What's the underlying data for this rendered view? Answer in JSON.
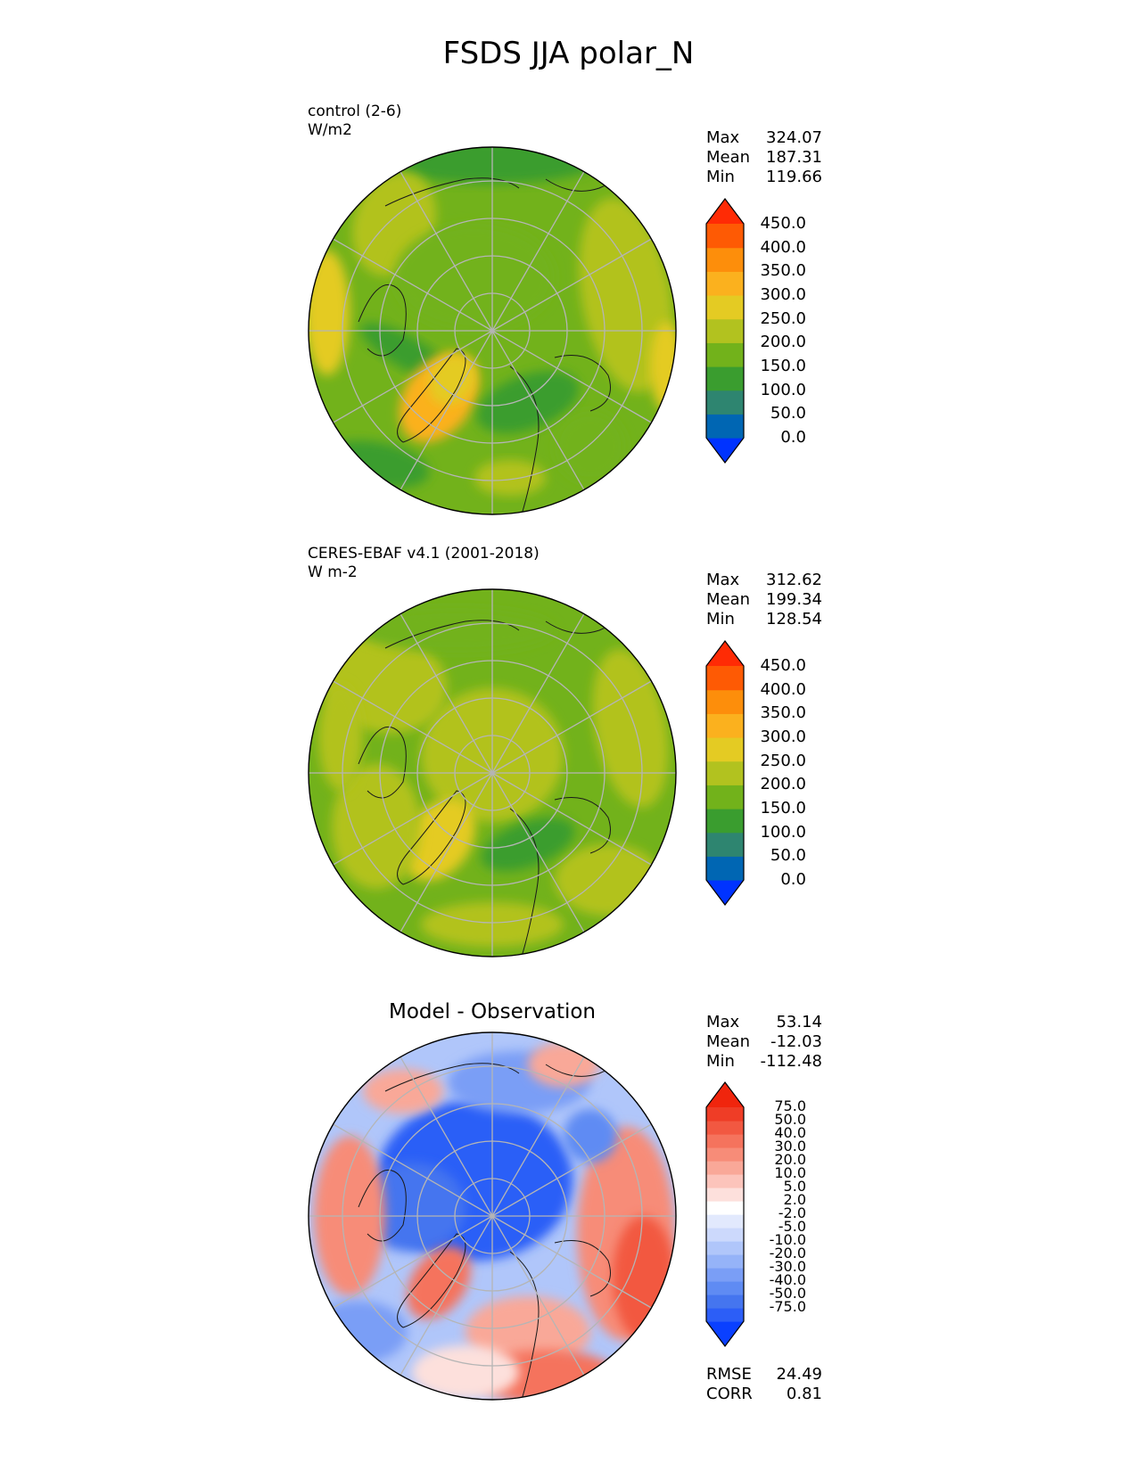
{
  "title": "FSDS JJA polar_N",
  "colors": {
    "abs_levels": [
      "#0033ff",
      "#0066b3",
      "#2e8570",
      "#3a9d2f",
      "#72b21b",
      "#b2c21f",
      "#e4cb23",
      "#fbb11e",
      "#fd8e0b",
      "#fe5a04",
      "#ff2b05"
    ],
    "diff_levels": [
      "#0a40ff",
      "#2c5ef7",
      "#4575ef",
      "#5f8bf3",
      "#7a9ef6",
      "#95b3f8",
      "#b0c6fa",
      "#ccd9fc",
      "#e2e9fd",
      "#ffffff",
      "#fde0dc",
      "#fcc4bb",
      "#f9a898",
      "#f78c78",
      "#f5735d",
      "#f25841",
      "#ef3d26",
      "#f0250d"
    ]
  },
  "panels": [
    {
      "label_line1": "control (2-6)",
      "label_line2": "W/m2",
      "stats": {
        "max_label": "Max",
        "max": "324.07",
        "mean_label": "Mean",
        "mean": "187.31",
        "min_label": "Min",
        "min": "119.66"
      }
    },
    {
      "label_line1": "CERES-EBAF v4.1 (2001-2018)",
      "label_line2": "W m-2",
      "stats": {
        "max_label": "Max",
        "max": "312.62",
        "mean_label": "Mean",
        "mean": "199.34",
        "min_label": "Min",
        "min": "128.54"
      }
    },
    {
      "title": "Model - Observation",
      "stats": {
        "max_label": "Max",
        "max": "53.14",
        "mean_label": "Mean",
        "mean": "-12.03",
        "min_label": "Min",
        "min": "-112.48"
      },
      "metrics": {
        "rmse_label": "RMSE",
        "rmse": "24.49",
        "corr_label": "CORR",
        "corr": "0.81"
      }
    }
  ],
  "colorbar_abs_ticks": [
    "450.0",
    "400.0",
    "350.0",
    "300.0",
    "250.0",
    "200.0",
    "150.0",
    "100.0",
    "50.0",
    "0.0"
  ],
  "colorbar_diff_ticks": [
    "75.0",
    "50.0",
    "40.0",
    "30.0",
    "20.0",
    "10.0",
    "5.0",
    "2.0",
    "-2.0",
    "-5.0",
    "-10.0",
    "-20.0",
    "-30.0",
    "-40.0",
    "-50.0",
    "-75.0"
  ]
}
